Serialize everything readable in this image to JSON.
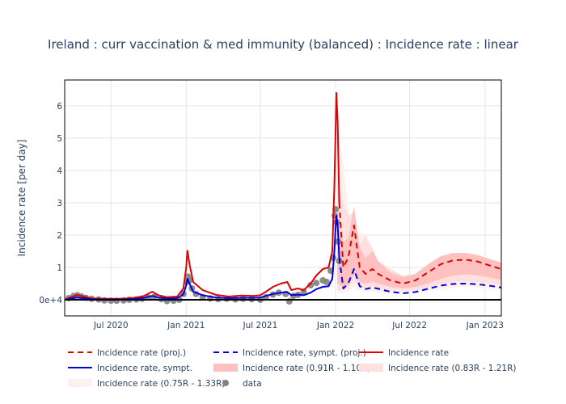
{
  "chart_data": {
    "type": "line",
    "title": "Ireland : curr vaccination & med immunity (balanced) : Incidence rate : linear",
    "xlabel": "",
    "ylabel": "Incidence rate [per day]",
    "x_range": [
      "2020-03-10",
      "2023-02-10"
    ],
    "y_range": [
      -0.5,
      6.8
    ],
    "y_ticks": [
      {
        "value": 0,
        "label": "0e+4"
      },
      {
        "value": 1,
        "label": "1"
      },
      {
        "value": 2,
        "label": "2"
      },
      {
        "value": 3,
        "label": "3"
      },
      {
        "value": 4,
        "label": "4"
      },
      {
        "value": 5,
        "label": "5"
      },
      {
        "value": 6,
        "label": "6"
      }
    ],
    "x_ticks": [
      {
        "value": "2020-07-01",
        "label": "Jul 2020"
      },
      {
        "value": "2021-01-01",
        "label": "Jan 2021"
      },
      {
        "value": "2021-07-01",
        "label": "Jul 2021"
      },
      {
        "value": "2022-01-01",
        "label": "Jan 2022"
      },
      {
        "value": "2022-07-01",
        "label": "Jul 2022"
      },
      {
        "value": "2023-01-01",
        "label": "Jan 2023"
      }
    ],
    "grid": true,
    "legend_position": "bottom",
    "colors": {
      "red": "#e00000",
      "blue": "#0000e0",
      "band_inner": "#ffc0c0",
      "band_mid": "#ffe0e0",
      "band_outer": "#fff0f0",
      "data": "#808080"
    },
    "legend": [
      {
        "key": "proj",
        "label": "Incidence rate (proj.)"
      },
      {
        "key": "symp_proj",
        "label": "Incidence rate, sympt. (proj.)"
      },
      {
        "key": "rate",
        "label": "Incidence rate"
      },
      {
        "key": "symp",
        "label": "Incidence rate, sympt."
      },
      {
        "key": "band1",
        "label": "Incidence rate (0.91R - 1.10R)"
      },
      {
        "key": "band2",
        "label": "Incidence rate (0.83R - 1.21R)"
      },
      {
        "key": "band3",
        "label": "Incidence rate (0.75R - 1.33R)"
      },
      {
        "key": "data",
        "label": "data"
      }
    ],
    "series": {
      "rate": [
        [
          "2020-03-10",
          0.0
        ],
        [
          "2020-03-25",
          0.08
        ],
        [
          "2020-04-10",
          0.15
        ],
        [
          "2020-04-25",
          0.1
        ],
        [
          "2020-05-15",
          0.04
        ],
        [
          "2020-06-15",
          0.03
        ],
        [
          "2020-08-01",
          0.03
        ],
        [
          "2020-09-01",
          0.07
        ],
        [
          "2020-09-20",
          0.12
        ],
        [
          "2020-10-10",
          0.25
        ],
        [
          "2020-10-25",
          0.14
        ],
        [
          "2020-11-15",
          0.08
        ],
        [
          "2020-12-10",
          0.1
        ],
        [
          "2020-12-25",
          0.35
        ],
        [
          "2021-01-01",
          1.0
        ],
        [
          "2021-01-04",
          1.52
        ],
        [
          "2021-01-09",
          1.1
        ],
        [
          "2021-01-18",
          0.55
        ],
        [
          "2021-02-10",
          0.3
        ],
        [
          "2021-03-15",
          0.15
        ],
        [
          "2021-04-15",
          0.1
        ],
        [
          "2021-05-15",
          0.13
        ],
        [
          "2021-06-15",
          0.12
        ],
        [
          "2021-07-01",
          0.14
        ],
        [
          "2021-07-15",
          0.25
        ],
        [
          "2021-08-01",
          0.4
        ],
        [
          "2021-08-20",
          0.5
        ],
        [
          "2021-09-05",
          0.55
        ],
        [
          "2021-09-15",
          0.3
        ],
        [
          "2021-10-01",
          0.35
        ],
        [
          "2021-10-15",
          0.3
        ],
        [
          "2021-11-01",
          0.5
        ],
        [
          "2021-11-15",
          0.75
        ],
        [
          "2021-12-01",
          0.95
        ],
        [
          "2021-12-15",
          1.0
        ],
        [
          "2021-12-24",
          1.5
        ],
        [
          "2021-12-29",
          3.5
        ],
        [
          "2022-01-01",
          5.2
        ],
        [
          "2022-01-03",
          6.4
        ],
        [
          "2022-01-06",
          5.5
        ],
        [
          "2022-01-10",
          3.0
        ]
      ],
      "symp": [
        [
          "2020-03-10",
          0.0
        ],
        [
          "2020-03-25",
          0.04
        ],
        [
          "2020-04-10",
          0.07
        ],
        [
          "2020-04-25",
          0.05
        ],
        [
          "2020-05-15",
          0.02
        ],
        [
          "2020-06-15",
          0.01
        ],
        [
          "2020-08-01",
          0.01
        ],
        [
          "2020-09-01",
          0.03
        ],
        [
          "2020-09-20",
          0.06
        ],
        [
          "2020-10-10",
          0.12
        ],
        [
          "2020-10-25",
          0.07
        ],
        [
          "2020-11-15",
          0.04
        ],
        [
          "2020-12-10",
          0.05
        ],
        [
          "2020-12-25",
          0.17
        ],
        [
          "2021-01-01",
          0.45
        ],
        [
          "2021-01-04",
          0.65
        ],
        [
          "2021-01-09",
          0.5
        ],
        [
          "2021-01-18",
          0.25
        ],
        [
          "2021-02-10",
          0.14
        ],
        [
          "2021-03-15",
          0.07
        ],
        [
          "2021-04-15",
          0.05
        ],
        [
          "2021-05-15",
          0.06
        ],
        [
          "2021-06-15",
          0.06
        ],
        [
          "2021-07-01",
          0.07
        ],
        [
          "2021-07-15",
          0.12
        ],
        [
          "2021-08-01",
          0.18
        ],
        [
          "2021-08-20",
          0.22
        ],
        [
          "2021-09-05",
          0.24
        ],
        [
          "2021-09-15",
          0.14
        ],
        [
          "2021-10-01",
          0.16
        ],
        [
          "2021-10-15",
          0.14
        ],
        [
          "2021-11-01",
          0.22
        ],
        [
          "2021-11-15",
          0.33
        ],
        [
          "2021-12-01",
          0.4
        ],
        [
          "2021-12-15",
          0.42
        ],
        [
          "2021-12-24",
          0.65
        ],
        [
          "2021-12-29",
          1.5
        ],
        [
          "2022-01-01",
          2.2
        ],
        [
          "2022-01-03",
          2.6
        ],
        [
          "2022-01-06",
          2.3
        ],
        [
          "2022-01-10",
          1.3
        ]
      ],
      "proj": [
        [
          "2022-01-10",
          3.0
        ],
        [
          "2022-01-20",
          1.0
        ],
        [
          "2022-02-01",
          1.3
        ],
        [
          "2022-02-15",
          2.3
        ],
        [
          "2022-03-01",
          1.0
        ],
        [
          "2022-03-15",
          0.8
        ],
        [
          "2022-04-01",
          0.95
        ],
        [
          "2022-04-15",
          0.8
        ],
        [
          "2022-05-15",
          0.6
        ],
        [
          "2022-06-15",
          0.5
        ],
        [
          "2022-07-15",
          0.6
        ],
        [
          "2022-08-15",
          0.85
        ],
        [
          "2022-09-15",
          1.1
        ],
        [
          "2022-10-15",
          1.22
        ],
        [
          "2022-11-15",
          1.24
        ],
        [
          "2022-12-15",
          1.18
        ],
        [
          "2023-01-15",
          1.05
        ],
        [
          "2023-02-10",
          0.95
        ]
      ],
      "symp_proj": [
        [
          "2022-01-10",
          1.3
        ],
        [
          "2022-01-20",
          0.35
        ],
        [
          "2022-02-01",
          0.5
        ],
        [
          "2022-02-15",
          0.95
        ],
        [
          "2022-03-01",
          0.42
        ],
        [
          "2022-03-15",
          0.33
        ],
        [
          "2022-04-01",
          0.38
        ],
        [
          "2022-04-15",
          0.34
        ],
        [
          "2022-05-15",
          0.25
        ],
        [
          "2022-06-15",
          0.2
        ],
        [
          "2022-07-15",
          0.24
        ],
        [
          "2022-08-15",
          0.34
        ],
        [
          "2022-09-15",
          0.44
        ],
        [
          "2022-10-15",
          0.49
        ],
        [
          "2022-11-15",
          0.5
        ],
        [
          "2022-12-15",
          0.48
        ],
        [
          "2023-01-15",
          0.43
        ],
        [
          "2023-02-10",
          0.38
        ]
      ],
      "band1": [
        [
          "2022-01-05",
          2.6,
          0.5
        ],
        [
          "2022-01-20",
          1.8,
          0.4
        ],
        [
          "2022-02-01",
          1.9,
          0.45
        ],
        [
          "2022-02-15",
          2.9,
          0.8
        ],
        [
          "2022-03-01",
          1.6,
          0.55
        ],
        [
          "2022-03-15",
          1.3,
          0.5
        ],
        [
          "2022-04-01",
          1.5,
          0.55
        ],
        [
          "2022-04-15",
          1.2,
          0.5
        ],
        [
          "2022-05-15",
          0.85,
          0.4
        ],
        [
          "2022-06-15",
          0.7,
          0.35
        ],
        [
          "2022-07-15",
          0.8,
          0.4
        ],
        [
          "2022-08-15",
          1.1,
          0.5
        ],
        [
          "2022-09-15",
          1.35,
          0.65
        ],
        [
          "2022-10-15",
          1.45,
          0.75
        ],
        [
          "2022-11-15",
          1.45,
          0.78
        ],
        [
          "2022-12-15",
          1.38,
          0.75
        ],
        [
          "2023-01-15",
          1.25,
          0.68
        ],
        [
          "2023-02-10",
          1.15,
          0.62
        ]
      ],
      "band2": [
        [
          "2022-01-05",
          3.6,
          0.3
        ],
        [
          "2022-01-20",
          3.0,
          0.3
        ],
        [
          "2022-02-01",
          2.6,
          0.35
        ],
        [
          "2022-02-15",
          2.7,
          0.6
        ],
        [
          "2022-03-01",
          1.7,
          0.4
        ],
        [
          "2022-03-15",
          2.0,
          0.35
        ],
        [
          "2022-04-01",
          1.6,
          0.4
        ],
        [
          "2022-04-15",
          1.2,
          0.35
        ],
        [
          "2022-05-15",
          0.95,
          0.3
        ],
        [
          "2022-06-15",
          0.75,
          0.28
        ],
        [
          "2022-07-15",
          0.8,
          0.3
        ],
        [
          "2022-08-15",
          1.1,
          0.38
        ],
        [
          "2022-09-15",
          1.3,
          0.48
        ],
        [
          "2022-10-15",
          1.4,
          0.55
        ],
        [
          "2022-11-15",
          1.4,
          0.57
        ],
        [
          "2022-12-15",
          1.35,
          0.55
        ],
        [
          "2023-01-15",
          1.25,
          0.5
        ],
        [
          "2023-02-10",
          1.15,
          0.45
        ]
      ],
      "band3": [
        [
          "2022-01-05",
          4.0,
          0.2
        ],
        [
          "2022-01-15",
          4.7,
          0.2
        ],
        [
          "2022-02-01",
          2.8,
          0.25
        ],
        [
          "2022-02-15",
          2.0,
          0.4
        ],
        [
          "2022-03-01",
          2.1,
          0.3
        ],
        [
          "2022-03-15",
          2.0,
          0.25
        ],
        [
          "2022-04-01",
          1.5,
          0.28
        ],
        [
          "2022-04-15",
          1.2,
          0.25
        ],
        [
          "2022-05-15",
          0.95,
          0.22
        ],
        [
          "2022-06-15",
          0.75,
          0.2
        ],
        [
          "2022-07-15",
          0.75,
          0.22
        ],
        [
          "2022-08-15",
          0.95,
          0.28
        ],
        [
          "2022-09-15",
          1.15,
          0.33
        ],
        [
          "2022-10-15",
          1.25,
          0.38
        ],
        [
          "2022-11-15",
          1.28,
          0.4
        ],
        [
          "2022-12-15",
          1.22,
          0.38
        ],
        [
          "2023-01-15",
          1.12,
          0.35
        ],
        [
          "2023-02-10",
          1.05,
          0.32
        ]
      ],
      "data": [
        [
          "2020-03-20",
          0.05
        ],
        [
          "2020-04-01",
          0.12
        ],
        [
          "2020-04-10",
          0.14
        ],
        [
          "2020-04-20",
          0.1
        ],
        [
          "2020-05-01",
          0.06
        ],
        [
          "2020-05-15",
          0.03
        ],
        [
          "2020-06-01",
          0.01
        ],
        [
          "2020-06-15",
          -0.02
        ],
        [
          "2020-07-01",
          -0.03
        ],
        [
          "2020-07-15",
          -0.03
        ],
        [
          "2020-08-01",
          -0.02
        ],
        [
          "2020-08-15",
          0.0
        ],
        [
          "2020-09-01",
          0.01
        ],
        [
          "2020-09-15",
          0.03
        ],
        [
          "2020-10-01",
          0.07
        ],
        [
          "2020-10-15",
          0.09
        ],
        [
          "2020-11-01",
          0.02
        ],
        [
          "2020-11-15",
          -0.04
        ],
        [
          "2020-12-01",
          -0.03
        ],
        [
          "2020-12-15",
          0.0
        ],
        [
          "2020-12-25",
          0.18
        ],
        [
          "2021-01-02",
          0.55
        ],
        [
          "2021-01-05",
          0.72
        ],
        [
          "2021-01-09",
          0.6
        ],
        [
          "2021-01-15",
          0.35
        ],
        [
          "2021-01-25",
          0.18
        ],
        [
          "2021-02-10",
          0.08
        ],
        [
          "2021-03-01",
          0.04
        ],
        [
          "2021-03-20",
          0.02
        ],
        [
          "2021-04-10",
          0.03
        ],
        [
          "2021-05-01",
          0.01
        ],
        [
          "2021-05-20",
          0.03
        ],
        [
          "2021-06-10",
          0.02
        ],
        [
          "2021-07-01",
          0.0
        ],
        [
          "2021-07-15",
          0.08
        ],
        [
          "2021-08-01",
          0.16
        ],
        [
          "2021-08-15",
          0.22
        ],
        [
          "2021-09-01",
          0.18
        ],
        [
          "2021-09-10",
          -0.05
        ],
        [
          "2021-09-20",
          0.12
        ],
        [
          "2021-10-01",
          0.15
        ],
        [
          "2021-10-15",
          0.25
        ],
        [
          "2021-11-01",
          0.45
        ],
        [
          "2021-11-15",
          0.52
        ],
        [
          "2021-12-01",
          0.6
        ],
        [
          "2021-12-10",
          0.55
        ],
        [
          "2021-12-20",
          0.9
        ],
        [
          "2021-12-26",
          1.3
        ],
        [
          "2021-12-30",
          2.6
        ],
        [
          "2022-01-01",
          2.8
        ],
        [
          "2022-01-04",
          2.4
        ],
        [
          "2022-01-07",
          1.8
        ],
        [
          "2022-01-10",
          1.2
        ]
      ]
    }
  }
}
